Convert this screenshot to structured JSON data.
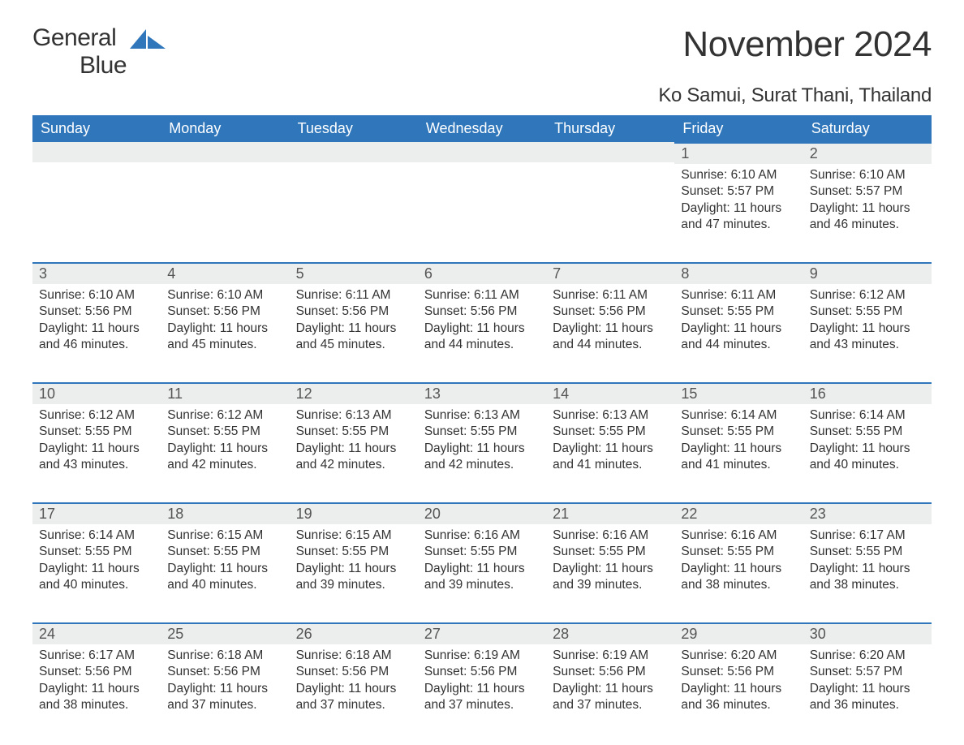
{
  "logo": {
    "word1": "General",
    "word2": "Blue"
  },
  "title": "November 2024",
  "subtitle": "Ko Samui, Surat Thani, Thailand",
  "colors": {
    "header_bg": "#2f76bb",
    "header_text": "#ffffff",
    "daynum_bg": "#eceded",
    "daynum_border": "#2f76bb",
    "body_text": "#333333",
    "logo_blue": "#2f76bb",
    "page_bg": "#ffffff"
  },
  "typography": {
    "title_fontsize": 44,
    "subtitle_fontsize": 24,
    "header_fontsize": 18,
    "daynum_fontsize": 18,
    "body_fontsize": 15.5,
    "font_family": "Arial"
  },
  "layout": {
    "columns": 7,
    "rows": 5,
    "aspect_ratio": "1188x918"
  },
  "day_headers": [
    "Sunday",
    "Monday",
    "Tuesday",
    "Wednesday",
    "Thursday",
    "Friday",
    "Saturday"
  ],
  "weeks": [
    [
      null,
      null,
      null,
      null,
      null,
      {
        "num": "1",
        "sunrise": "6:10 AM",
        "sunset": "5:57 PM",
        "daylight": "11 hours and 47 minutes."
      },
      {
        "num": "2",
        "sunrise": "6:10 AM",
        "sunset": "5:57 PM",
        "daylight": "11 hours and 46 minutes."
      }
    ],
    [
      {
        "num": "3",
        "sunrise": "6:10 AM",
        "sunset": "5:56 PM",
        "daylight": "11 hours and 46 minutes."
      },
      {
        "num": "4",
        "sunrise": "6:10 AM",
        "sunset": "5:56 PM",
        "daylight": "11 hours and 45 minutes."
      },
      {
        "num": "5",
        "sunrise": "6:11 AM",
        "sunset": "5:56 PM",
        "daylight": "11 hours and 45 minutes."
      },
      {
        "num": "6",
        "sunrise": "6:11 AM",
        "sunset": "5:56 PM",
        "daylight": "11 hours and 44 minutes."
      },
      {
        "num": "7",
        "sunrise": "6:11 AM",
        "sunset": "5:56 PM",
        "daylight": "11 hours and 44 minutes."
      },
      {
        "num": "8",
        "sunrise": "6:11 AM",
        "sunset": "5:55 PM",
        "daylight": "11 hours and 44 minutes."
      },
      {
        "num": "9",
        "sunrise": "6:12 AM",
        "sunset": "5:55 PM",
        "daylight": "11 hours and 43 minutes."
      }
    ],
    [
      {
        "num": "10",
        "sunrise": "6:12 AM",
        "sunset": "5:55 PM",
        "daylight": "11 hours and 43 minutes."
      },
      {
        "num": "11",
        "sunrise": "6:12 AM",
        "sunset": "5:55 PM",
        "daylight": "11 hours and 42 minutes."
      },
      {
        "num": "12",
        "sunrise": "6:13 AM",
        "sunset": "5:55 PM",
        "daylight": "11 hours and 42 minutes."
      },
      {
        "num": "13",
        "sunrise": "6:13 AM",
        "sunset": "5:55 PM",
        "daylight": "11 hours and 42 minutes."
      },
      {
        "num": "14",
        "sunrise": "6:13 AM",
        "sunset": "5:55 PM",
        "daylight": "11 hours and 41 minutes."
      },
      {
        "num": "15",
        "sunrise": "6:14 AM",
        "sunset": "5:55 PM",
        "daylight": "11 hours and 41 minutes."
      },
      {
        "num": "16",
        "sunrise": "6:14 AM",
        "sunset": "5:55 PM",
        "daylight": "11 hours and 40 minutes."
      }
    ],
    [
      {
        "num": "17",
        "sunrise": "6:14 AM",
        "sunset": "5:55 PM",
        "daylight": "11 hours and 40 minutes."
      },
      {
        "num": "18",
        "sunrise": "6:15 AM",
        "sunset": "5:55 PM",
        "daylight": "11 hours and 40 minutes."
      },
      {
        "num": "19",
        "sunrise": "6:15 AM",
        "sunset": "5:55 PM",
        "daylight": "11 hours and 39 minutes."
      },
      {
        "num": "20",
        "sunrise": "6:16 AM",
        "sunset": "5:55 PM",
        "daylight": "11 hours and 39 minutes."
      },
      {
        "num": "21",
        "sunrise": "6:16 AM",
        "sunset": "5:55 PM",
        "daylight": "11 hours and 39 minutes."
      },
      {
        "num": "22",
        "sunrise": "6:16 AM",
        "sunset": "5:55 PM",
        "daylight": "11 hours and 38 minutes."
      },
      {
        "num": "23",
        "sunrise": "6:17 AM",
        "sunset": "5:55 PM",
        "daylight": "11 hours and 38 minutes."
      }
    ],
    [
      {
        "num": "24",
        "sunrise": "6:17 AM",
        "sunset": "5:56 PM",
        "daylight": "11 hours and 38 minutes."
      },
      {
        "num": "25",
        "sunrise": "6:18 AM",
        "sunset": "5:56 PM",
        "daylight": "11 hours and 37 minutes."
      },
      {
        "num": "26",
        "sunrise": "6:18 AM",
        "sunset": "5:56 PM",
        "daylight": "11 hours and 37 minutes."
      },
      {
        "num": "27",
        "sunrise": "6:19 AM",
        "sunset": "5:56 PM",
        "daylight": "11 hours and 37 minutes."
      },
      {
        "num": "28",
        "sunrise": "6:19 AM",
        "sunset": "5:56 PM",
        "daylight": "11 hours and 37 minutes."
      },
      {
        "num": "29",
        "sunrise": "6:20 AM",
        "sunset": "5:56 PM",
        "daylight": "11 hours and 36 minutes."
      },
      {
        "num": "30",
        "sunrise": "6:20 AM",
        "sunset": "5:57 PM",
        "daylight": "11 hours and 36 minutes."
      }
    ]
  ],
  "labels": {
    "sunrise": "Sunrise:",
    "sunset": "Sunset:",
    "daylight": "Daylight:"
  }
}
